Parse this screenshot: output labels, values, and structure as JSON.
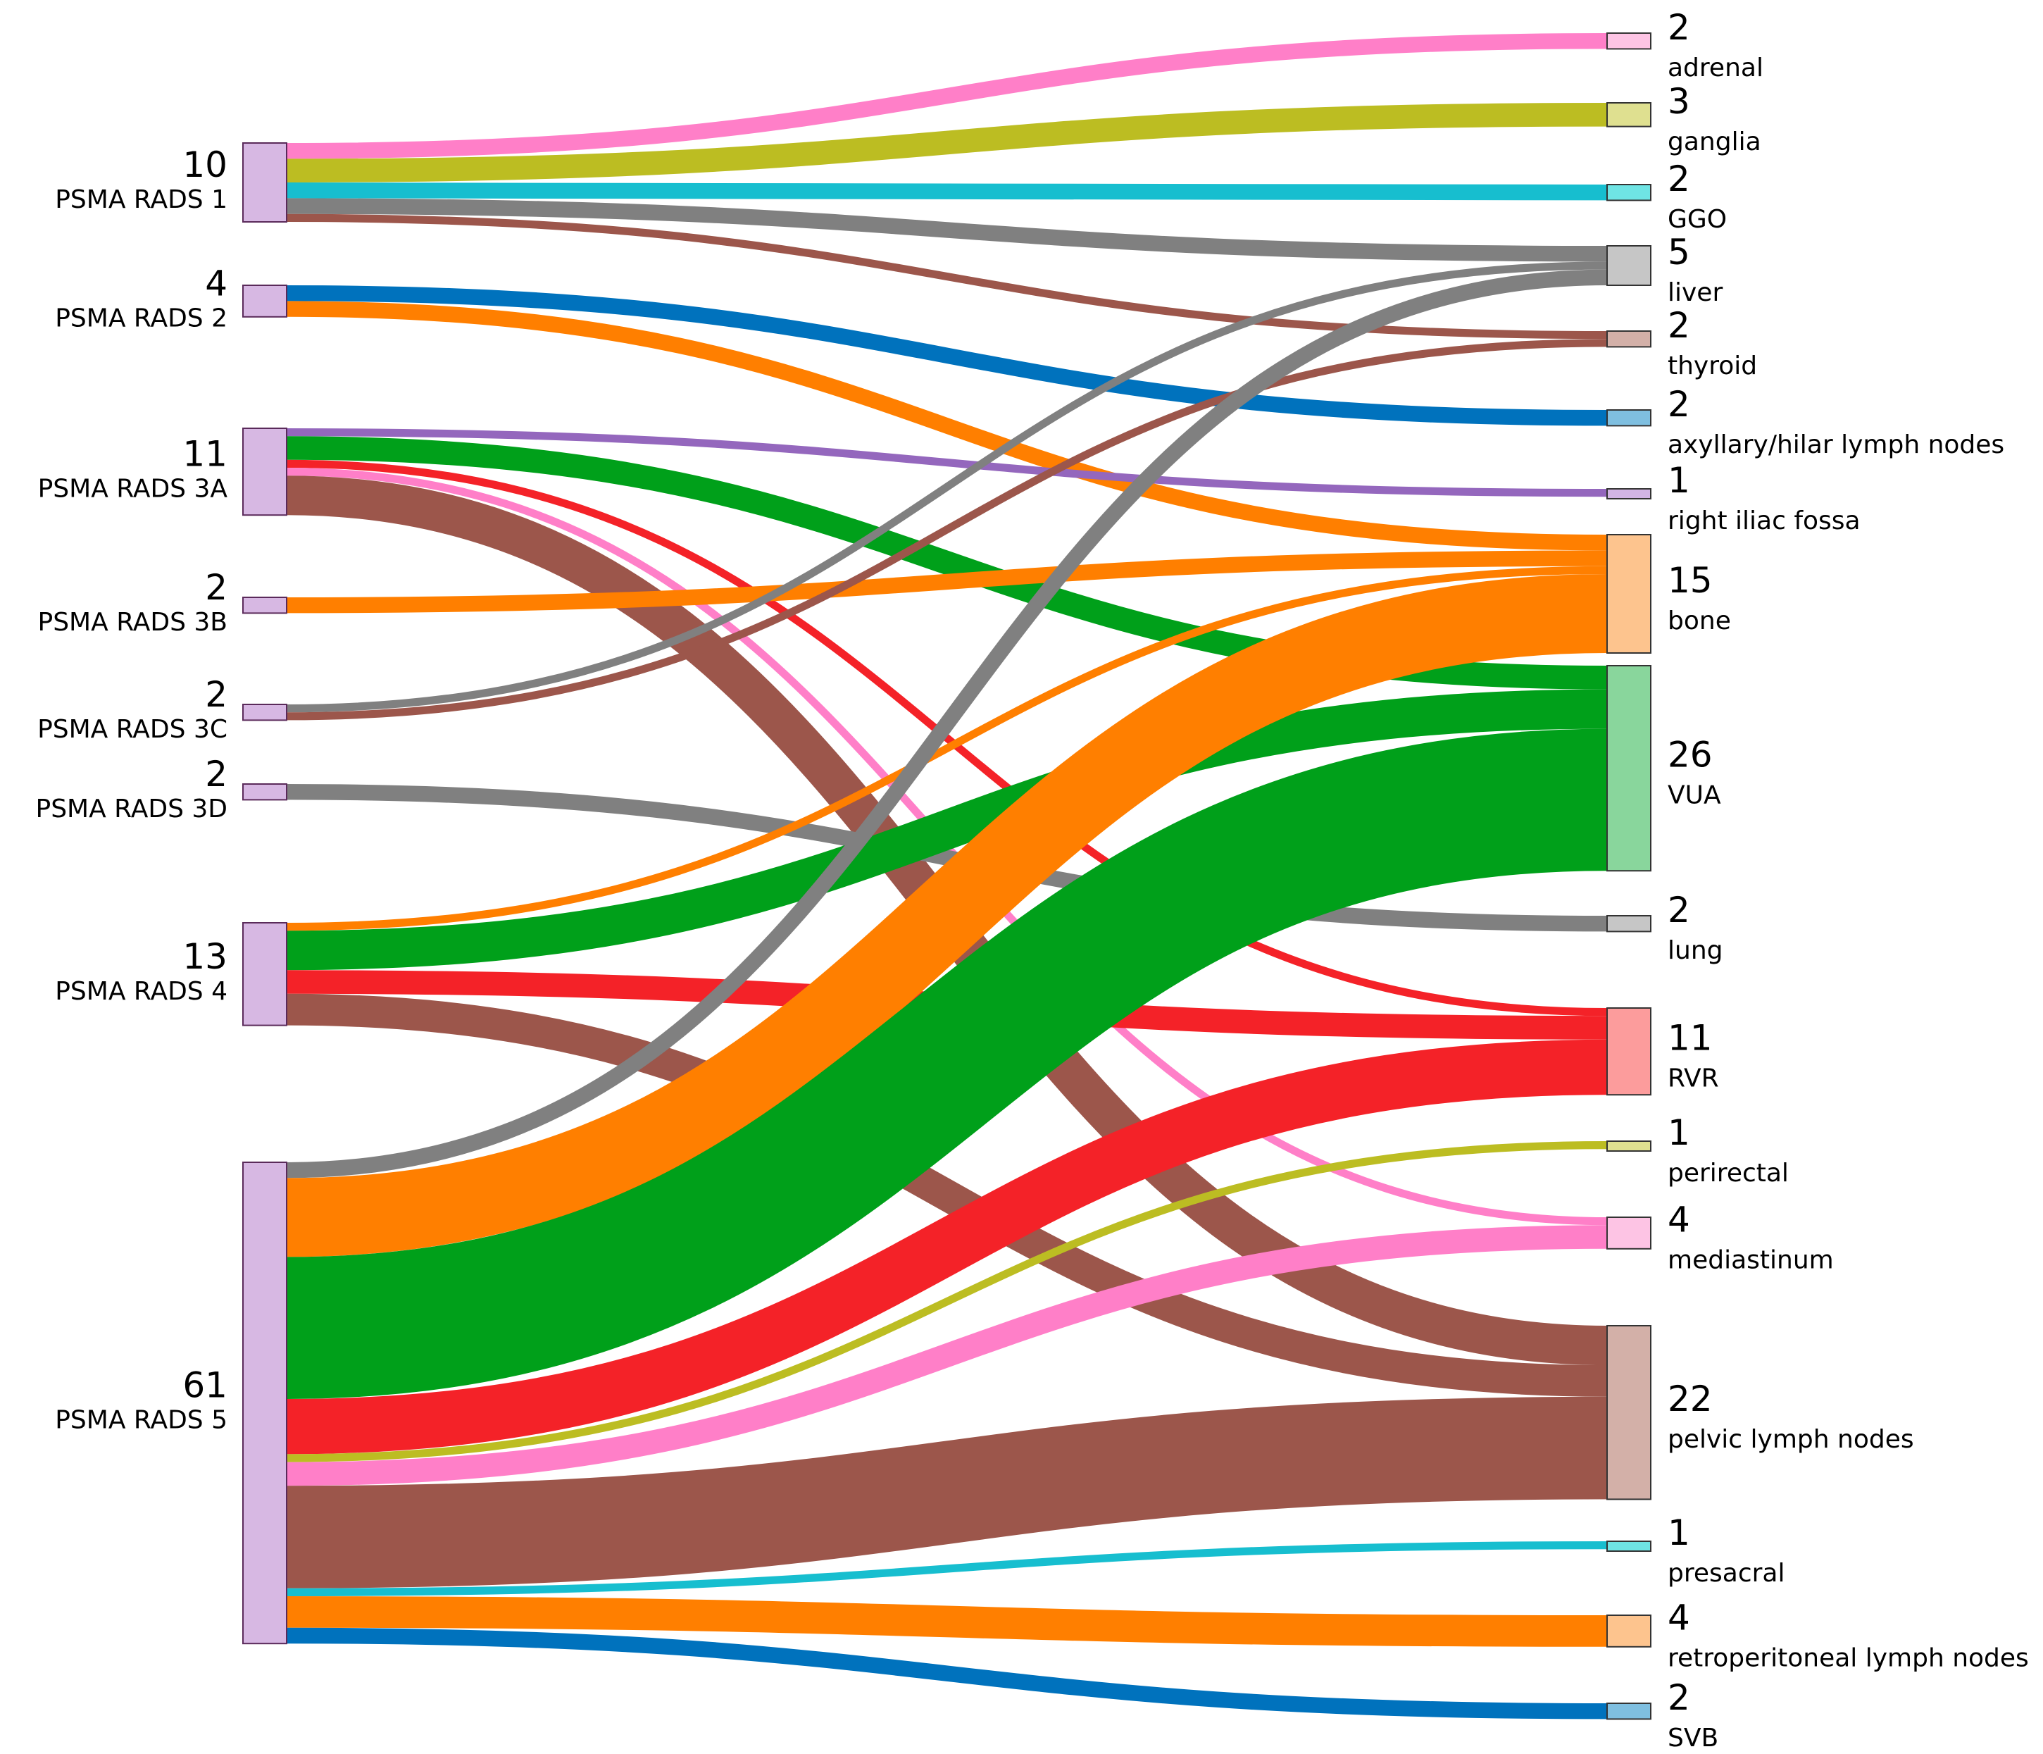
{
  "chart_data": {
    "type": "sankey",
    "title": "",
    "sources": [
      {
        "id": "r1",
        "label": "PSMA RADS 1",
        "count": 10
      },
      {
        "id": "r2",
        "label": "PSMA RADS 2",
        "count": 4
      },
      {
        "id": "r3a",
        "label": "PSMA RADS 3A",
        "count": 11
      },
      {
        "id": "r3b",
        "label": "PSMA RADS 3B",
        "count": 2
      },
      {
        "id": "r3c",
        "label": "PSMA RADS 3C",
        "count": 2
      },
      {
        "id": "r3d",
        "label": "PSMA RADS 3D",
        "count": 2
      },
      {
        "id": "r4",
        "label": "PSMA RADS 4",
        "count": 13
      },
      {
        "id": "r5",
        "label": "PSMA RADS 5",
        "count": 61
      }
    ],
    "targets": [
      {
        "id": "adrenal",
        "label": "adrenal",
        "count": 2,
        "color": "#fdc4e4"
      },
      {
        "id": "ganglia",
        "label": "ganglia",
        "count": 3,
        "color": "#dfe090"
      },
      {
        "id": "ggo",
        "label": "GGO",
        "count": 2,
        "color": "#6fe4e4"
      },
      {
        "id": "liver",
        "label": "liver",
        "count": 5,
        "color": "#c6c6c6"
      },
      {
        "id": "thyroid",
        "label": "thyroid",
        "count": 2,
        "color": "#d3b0a8"
      },
      {
        "id": "axillary",
        "label": "axyllary/hilar lymph nodes",
        "count": 2,
        "color": "#7fbfe0"
      },
      {
        "id": "rif",
        "label": "right iliac fossa",
        "count": 1,
        "color": "#d2b4e4"
      },
      {
        "id": "bone",
        "label": "bone",
        "count": 15,
        "color": "#fdc48e"
      },
      {
        "id": "vua",
        "label": "VUA",
        "count": 26,
        "color": "#89d69c"
      },
      {
        "id": "lung",
        "label": "lung",
        "count": 2,
        "color": "#c6c6c6"
      },
      {
        "id": "rvr",
        "label": "RVR",
        "count": 11,
        "color": "#fc9c9c"
      },
      {
        "id": "perirectal",
        "label": "perirectal",
        "count": 1,
        "color": "#dfe090"
      },
      {
        "id": "mediastinum",
        "label": "mediastinum",
        "count": 4,
        "color": "#fdc4e4"
      },
      {
        "id": "pelvic",
        "label": "pelvic lymph nodes",
        "count": 22,
        "color": "#d3b0a8"
      },
      {
        "id": "presacral",
        "label": "presacral",
        "count": 1,
        "color": "#6fe4e4"
      },
      {
        "id": "retro",
        "label": "retroperitoneal lymph nodes",
        "count": 4,
        "color": "#fdc48e"
      },
      {
        "id": "svb",
        "label": "SVB",
        "count": 2,
        "color": "#7fbfe0"
      }
    ],
    "links": [
      {
        "source": "r1",
        "target": "adrenal",
        "value": 2,
        "color": "#ff7fc8"
      },
      {
        "source": "r1",
        "target": "ganglia",
        "value": 3,
        "color": "#bcbd22"
      },
      {
        "source": "r1",
        "target": "ggo",
        "value": 2,
        "color": "#17becf"
      },
      {
        "source": "r1",
        "target": "liver",
        "value": 2,
        "color": "#808080"
      },
      {
        "source": "r1",
        "target": "thyroid",
        "value": 1,
        "color": "#9c564b"
      },
      {
        "source": "r2",
        "target": "axillary",
        "value": 2,
        "color": "#0072bd"
      },
      {
        "source": "r2",
        "target": "bone",
        "value": 2,
        "color": "#ff7f00"
      },
      {
        "source": "r3a",
        "target": "rif",
        "value": 1,
        "color": "#9467bd"
      },
      {
        "source": "r3a",
        "target": "vua",
        "value": 3,
        "color": "#00a01a"
      },
      {
        "source": "r3a",
        "target": "rvr",
        "value": 1,
        "color": "#f42228"
      },
      {
        "source": "r3a",
        "target": "mediastinum",
        "value": 1,
        "color": "#ff7fc8"
      },
      {
        "source": "r3a",
        "target": "pelvic",
        "value": 5,
        "color": "#9c564b"
      },
      {
        "source": "r3b",
        "target": "bone",
        "value": 2,
        "color": "#ff7f00"
      },
      {
        "source": "r3c",
        "target": "liver",
        "value": 1,
        "color": "#808080"
      },
      {
        "source": "r3c",
        "target": "thyroid",
        "value": 1,
        "color": "#9c564b"
      },
      {
        "source": "r3d",
        "target": "lung",
        "value": 2,
        "color": "#808080"
      },
      {
        "source": "r4",
        "target": "bone",
        "value": 1,
        "color": "#ff7f00"
      },
      {
        "source": "r4",
        "target": "vua",
        "value": 5,
        "color": "#00a01a"
      },
      {
        "source": "r4",
        "target": "rvr",
        "value": 3,
        "color": "#f42228"
      },
      {
        "source": "r4",
        "target": "pelvic",
        "value": 4,
        "color": "#9c564b"
      },
      {
        "source": "r5",
        "target": "liver",
        "value": 2,
        "color": "#808080"
      },
      {
        "source": "r5",
        "target": "bone",
        "value": 10,
        "color": "#ff7f00"
      },
      {
        "source": "r5",
        "target": "vua",
        "value": 18,
        "color": "#00a01a"
      },
      {
        "source": "r5",
        "target": "rvr",
        "value": 7,
        "color": "#f42228"
      },
      {
        "source": "r5",
        "target": "perirectal",
        "value": 1,
        "color": "#bcbd22"
      },
      {
        "source": "r5",
        "target": "mediastinum",
        "value": 3,
        "color": "#ff7fc8"
      },
      {
        "source": "r5",
        "target": "pelvic",
        "value": 13,
        "color": "#9c564b"
      },
      {
        "source": "r5",
        "target": "presacral",
        "value": 1,
        "color": "#17becf"
      },
      {
        "source": "r5",
        "target": "retro",
        "value": 4,
        "color": "#ff7f00"
      },
      {
        "source": "r5",
        "target": "svb",
        "value": 2,
        "color": "#0072bd"
      }
    ],
    "source_node_color": "#d7b8e3"
  }
}
